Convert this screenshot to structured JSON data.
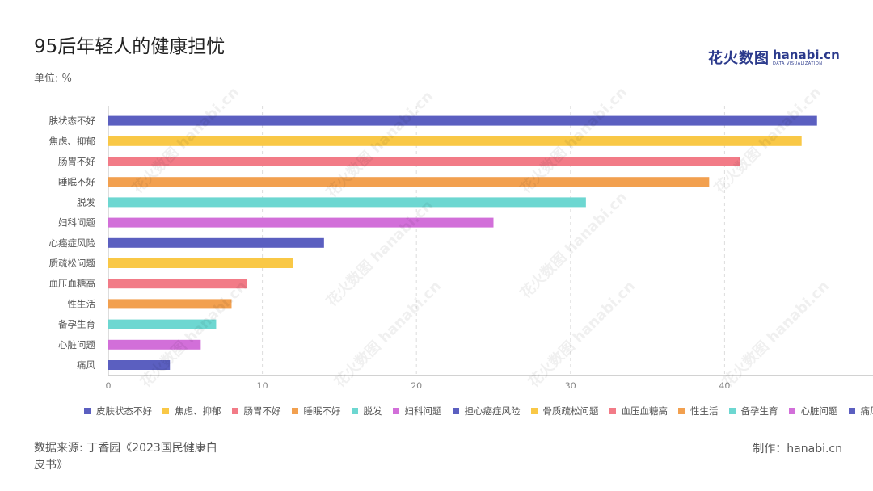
{
  "title": "95后年轻人的健康担忧",
  "unit": "单位: %",
  "logo": {
    "cn": "花火数图",
    "en": "hanabi.cn",
    "sub": "DATA VISUALIZATION"
  },
  "source": "数据来源: 丁香园《2023国民健康白皮书》",
  "credit": "制作：hanabi.cn",
  "watermark": "花火数图 hanabi.cn",
  "chart_data": {
    "type": "bar",
    "orientation": "horizontal",
    "categories": [
      "肤状态不好",
      "焦虑、抑郁",
      "肠胃不好",
      "睡眠不好",
      "脱发",
      "妇科问题",
      "心癌症风险",
      "质疏松问题",
      "血压血糖高",
      "性生活",
      "备孕生育",
      "心脏问题",
      "痛风"
    ],
    "values": [
      46,
      45,
      41,
      39,
      31,
      25,
      14,
      12,
      9,
      8,
      7,
      6,
      4
    ],
    "colors": [
      "#5b5fc0",
      "#f9c846",
      "#f27b87",
      "#f2a04f",
      "#6dd7d1",
      "#d26fd9",
      "#5b5fc0",
      "#f9c846",
      "#f27b87",
      "#f2a04f",
      "#6dd7d1",
      "#d26fd9",
      "#5b5fc0"
    ],
    "xlim": [
      0,
      50
    ],
    "xticks": [
      "0",
      "10",
      "20",
      "30",
      "40"
    ],
    "grid": "vertical dashed",
    "legend_position": "bottom",
    "legend": [
      {
        "label": "皮肤状态不好",
        "color": "#5b5fc0"
      },
      {
        "label": "焦虑、抑郁",
        "color": "#f9c846"
      },
      {
        "label": "肠胃不好",
        "color": "#f27b87"
      },
      {
        "label": "睡眠不好",
        "color": "#f2a04f"
      },
      {
        "label": "脱发",
        "color": "#6dd7d1"
      },
      {
        "label": "妇科问题",
        "color": "#d26fd9"
      },
      {
        "label": "担心癌症风险",
        "color": "#5b5fc0"
      },
      {
        "label": "骨质疏松问题",
        "color": "#f9c846"
      },
      {
        "label": "血压血糖高",
        "color": "#f27b87"
      },
      {
        "label": "性生活",
        "color": "#f2a04f"
      },
      {
        "label": "备孕生育",
        "color": "#6dd7d1"
      },
      {
        "label": "心脏问题",
        "color": "#d26fd9"
      },
      {
        "label": "痛风",
        "color": "#5b5fc0"
      }
    ]
  }
}
